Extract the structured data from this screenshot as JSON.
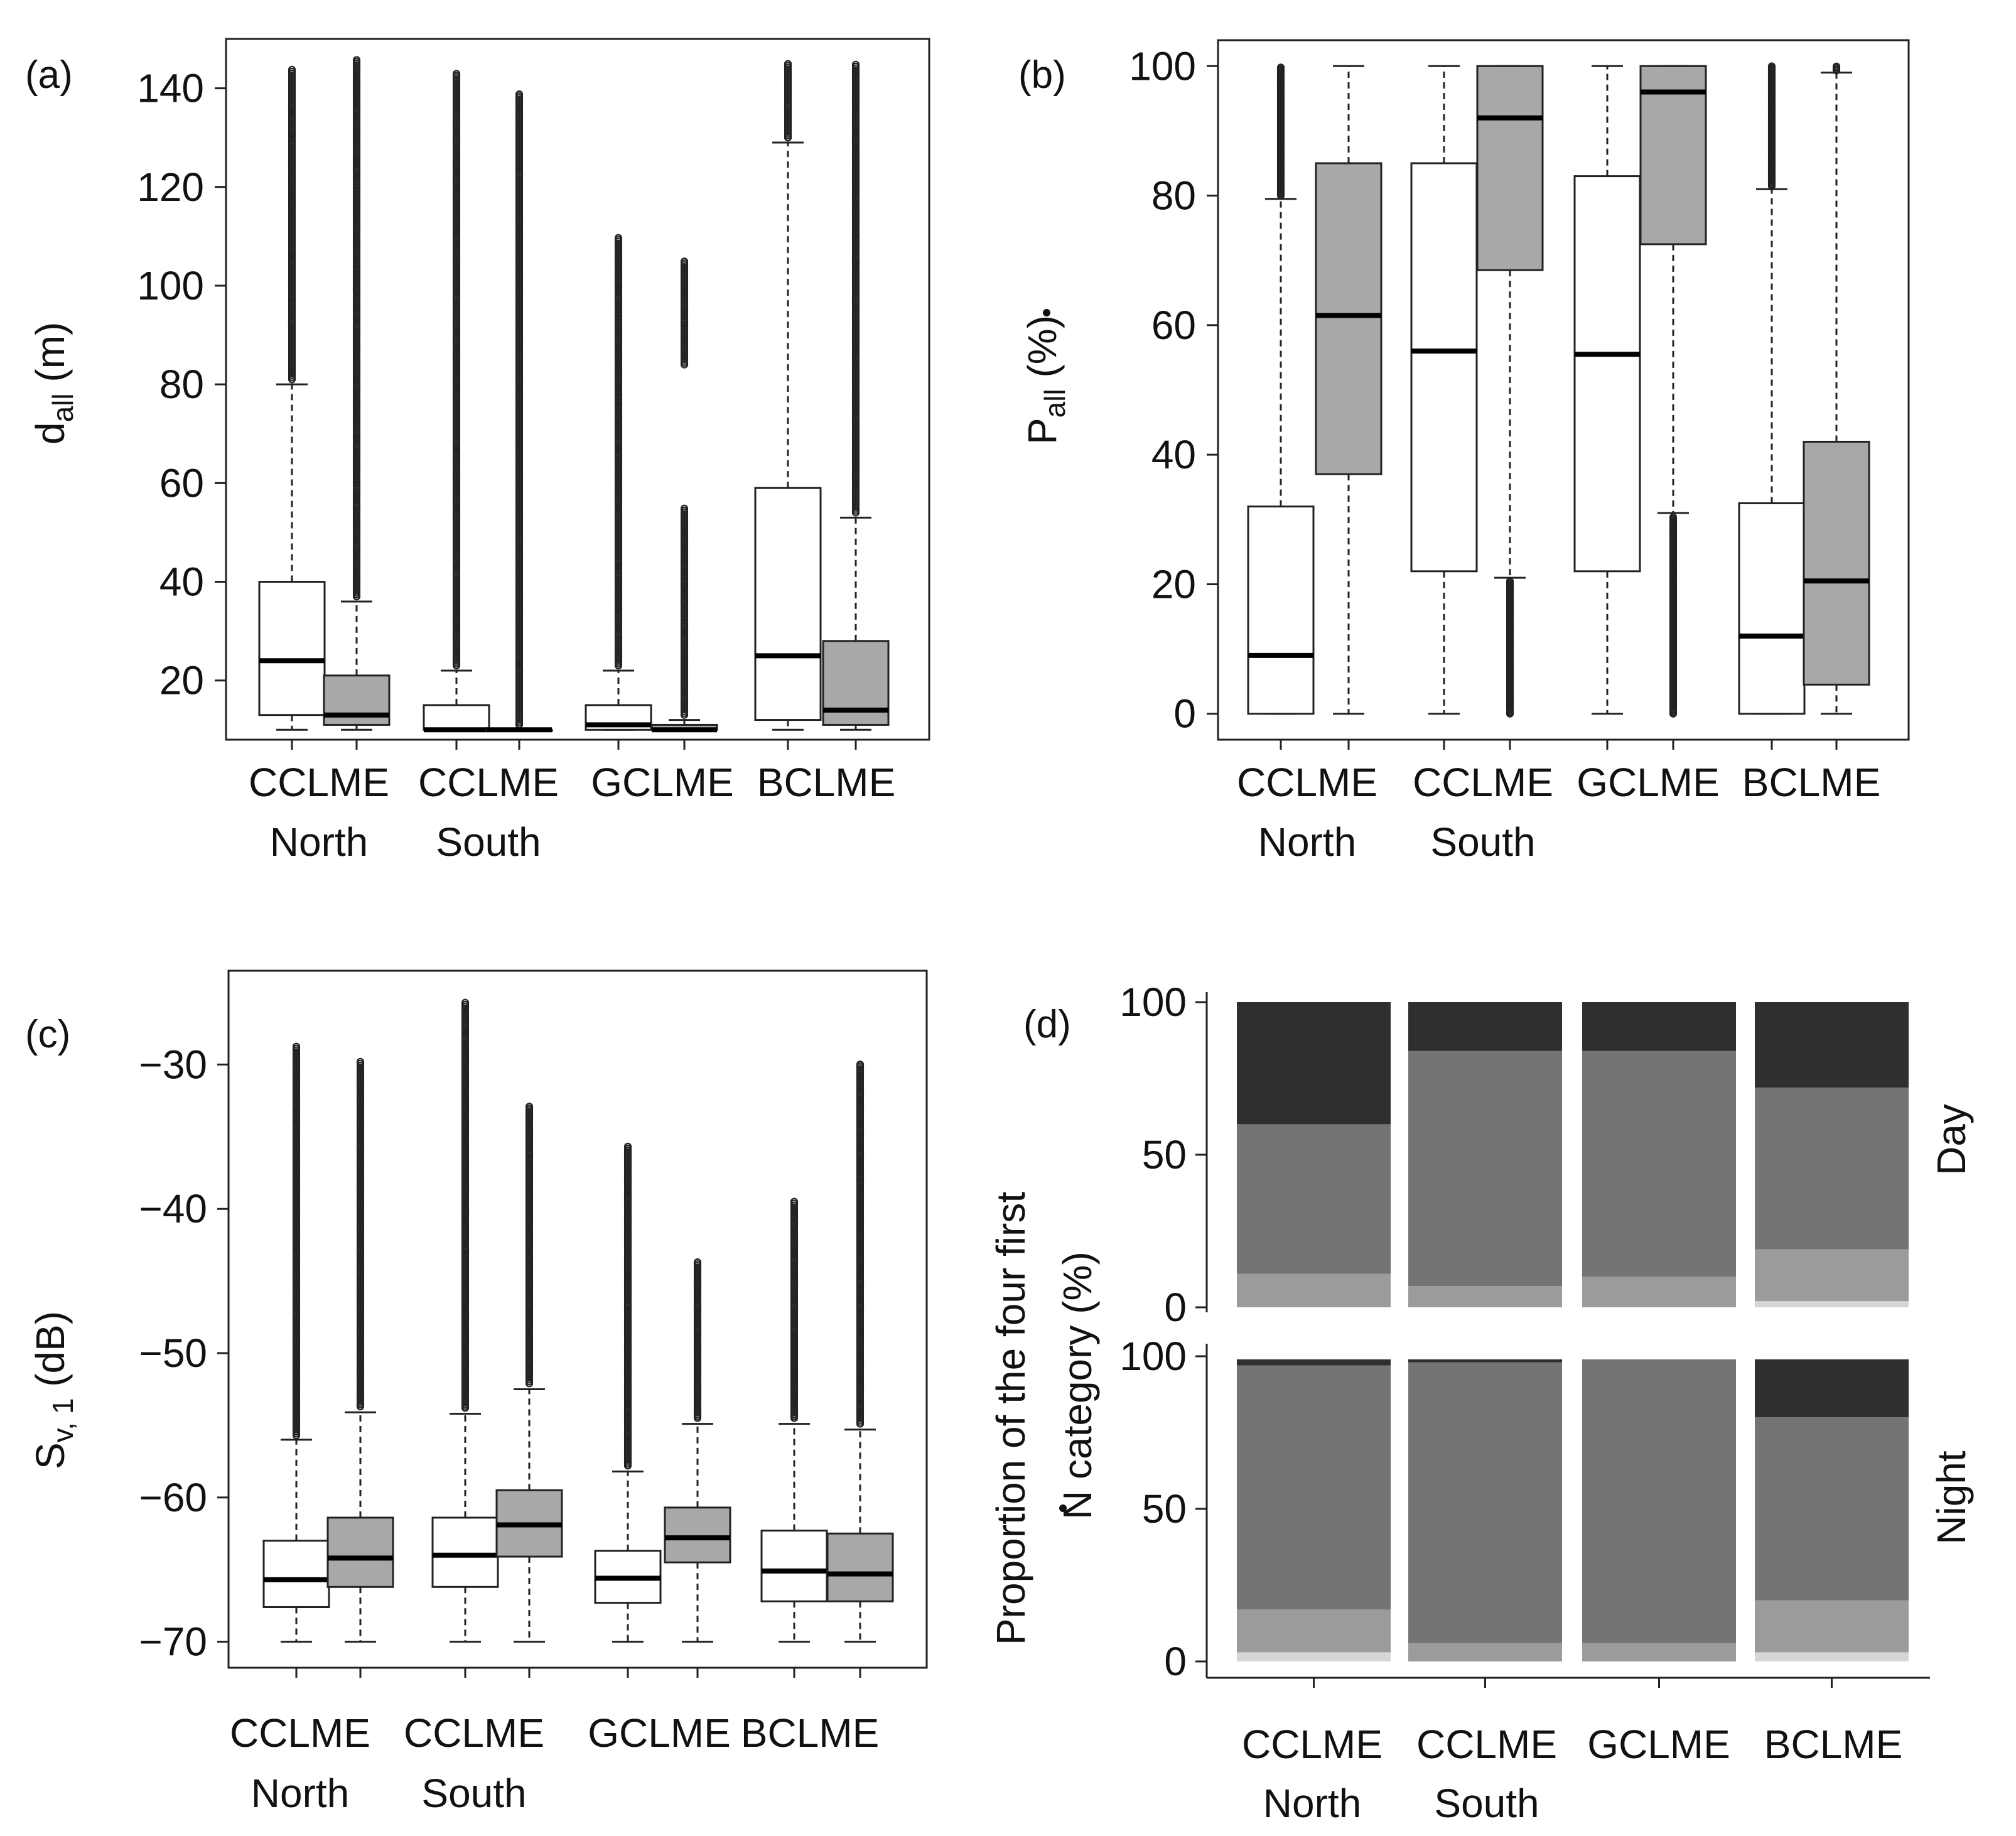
{
  "chart_data": [
    {
      "panel": "(a)",
      "type": "boxplot",
      "ylabel_main": "d",
      "ylabel_sub": "all",
      "ylabel_unit": " (m)",
      "yticks": [
        20,
        40,
        60,
        80,
        100,
        120,
        140
      ],
      "ylim": [
        8,
        150
      ],
      "groups": [
        {
          "line1": "CCLME",
          "line2": "North"
        },
        {
          "line1": "CCLME",
          "line2": "South"
        },
        {
          "line1": "GCLME",
          "line2": ""
        },
        {
          "line1": "BCLME",
          "line2": ""
        }
      ],
      "series": [
        {
          "name": "white",
          "boxes": [
            {
              "lw": 10,
              "q1": 13,
              "med": 24,
              "q3": 40,
              "uw": 80,
              "omin": 81,
              "omax": 144
            },
            {
              "lw": 10,
              "q1": 10,
              "med": 10,
              "q3": 15,
              "uw": 22,
              "omin": 23,
              "omax": 143
            },
            {
              "lw": 10,
              "q1": 10,
              "med": 11,
              "q3": 15,
              "uw": 22,
              "omin": 23,
              "omax": 110
            },
            {
              "lw": 10,
              "q1": 12,
              "med": 25,
              "q3": 59,
              "uw": 129,
              "omin": 130,
              "omax": 145
            }
          ]
        },
        {
          "name": "gray",
          "boxes": [
            {
              "lw": 10,
              "q1": 11,
              "med": 13,
              "q3": 21,
              "uw": 36,
              "omin": 37,
              "omax": 146
            },
            {
              "lw": 10,
              "q1": 10,
              "med": 10,
              "q3": 10,
              "uw": 10,
              "omin": 11,
              "omax": 139
            },
            {
              "lw": 10,
              "q1": 10,
              "med": 10,
              "q3": 11,
              "uw": 12,
              "omin": 13,
              "omax": 105,
              "gap": [
                55,
                84
              ]
            },
            {
              "lw": 10,
              "q1": 11,
              "med": 14,
              "q3": 28,
              "uw": 53,
              "omin": 54,
              "omax": 145
            }
          ]
        }
      ]
    },
    {
      "panel": "(b)",
      "type": "boxplot",
      "ylabel_main": "P",
      "ylabel_sub": "all",
      "ylabel_unit": " (%)",
      "yticks": [
        0,
        20,
        40,
        60,
        80,
        100
      ],
      "ylim": [
        -4,
        104
      ],
      "groups": [
        {
          "line1": "CCLME",
          "line2": "North"
        },
        {
          "line1": "CCLME",
          "line2": "South"
        },
        {
          "line1": "GCLME",
          "line2": ""
        },
        {
          "line1": "BCLME",
          "line2": ""
        }
      ],
      "series": [
        {
          "name": "white",
          "boxes": [
            {
              "lw": 0,
              "q1": 0,
              "med": 9,
              "q3": 32,
              "uw": 79.5,
              "omin": 80,
              "omax": 100
            },
            {
              "lw": 0,
              "q1": 22,
              "med": 56,
              "q3": 85,
              "uw": 100
            },
            {
              "lw": 0,
              "q1": 22,
              "med": 55.5,
              "q3": 83,
              "uw": 100
            },
            {
              "lw": 0,
              "q1": 0,
              "med": 12,
              "q3": 32.5,
              "uw": 81,
              "omin": 81.5,
              "omax": 100
            }
          ]
        },
        {
          "name": "gray",
          "boxes": [
            {
              "lw": 0,
              "q1": 37,
              "med": 61.5,
              "q3": 85,
              "uw": 100
            },
            {
              "lw": 21,
              "q1": 68.5,
              "med": 92,
              "q3": 100,
              "uw": 100,
              "omin": 0,
              "omax": 20.5
            },
            {
              "lw": 31,
              "q1": 72.5,
              "med": 96,
              "q3": 100,
              "uw": 100,
              "omin": 0,
              "omax": 30.5
            },
            {
              "lw": 0,
              "q1": 4.5,
              "med": 20.5,
              "q3": 42,
              "uw": 99,
              "omin": 99.3,
              "omax": 100
            }
          ]
        }
      ]
    },
    {
      "panel": "(c)",
      "type": "boxplot",
      "ylabel_main": "S",
      "ylabel_sub": "v, 1",
      "ylabel_unit": " (dB)",
      "yticks": [
        -70,
        -60,
        -50,
        -40,
        -30
      ],
      "ylim": [
        -71.8,
        -23.5
      ],
      "groups": [
        {
          "line1": "CCLME",
          "line2": "North"
        },
        {
          "line1": "CCLME",
          "line2": "South"
        },
        {
          "line1": "GCLME",
          "line2": ""
        },
        {
          "line1": "BCLME",
          "line2": ""
        }
      ],
      "series": [
        {
          "name": "white",
          "boxes": [
            {
              "lw": -70,
              "q1": -67.6,
              "med": -65.7,
              "q3": -63,
              "uw": -56,
              "omin": -55.7,
              "omax": -28.7
            },
            {
              "lw": -70,
              "q1": -66.2,
              "med": -64,
              "q3": -61.4,
              "uw": -54.2,
              "omin": -53.8,
              "omax": -25.6
            },
            {
              "lw": -70,
              "q1": -67.3,
              "med": -65.6,
              "q3": -63.7,
              "uw": -58.2,
              "omin": -57.8,
              "omax": -35.6
            },
            {
              "lw": -70,
              "q1": -67.2,
              "med": -65.1,
              "q3": -62.3,
              "uw": -54.9,
              "omin": -54.5,
              "omax": -39.4
            }
          ]
        },
        {
          "name": "gray",
          "boxes": [
            {
              "lw": -70,
              "q1": -66.2,
              "med": -64.2,
              "q3": -61.4,
              "uw": -54.1,
              "omin": -53.7,
              "omax": -29.8
            },
            {
              "lw": -70,
              "q1": -64.1,
              "med": -61.9,
              "q3": -59.5,
              "uw": -52.5,
              "omin": -52.1,
              "omax": -32.9
            },
            {
              "lw": -70,
              "q1": -64.5,
              "med": -62.8,
              "q3": -60.7,
              "uw": -54.9,
              "omin": -54.5,
              "omax": -43.6
            },
            {
              "lw": -70,
              "q1": -67.2,
              "med": -65.3,
              "q3": -62.5,
              "uw": -55.3,
              "omin": -54.9,
              "omax": -29.9
            }
          ]
        }
      ]
    },
    {
      "panel": "(d)",
      "type": "stacked-bar",
      "ylabel_line1": "Proportion of the four first",
      "ylabel_line2_main": "N",
      "ylabel_line2_rest": " category (%)",
      "yticks": [
        0,
        50,
        100
      ],
      "categories": [
        {
          "line1": "CCLME",
          "line2": "North"
        },
        {
          "line1": "CCLME",
          "line2": "South"
        },
        {
          "line1": "GCLME",
          "line2": ""
        },
        {
          "line1": "BCLME",
          "line2": ""
        }
      ],
      "segment_colors": [
        "#d6d6d6",
        "#9b9b9b",
        "#747474",
        "#2f2f2f"
      ],
      "facets": [
        {
          "label": "Day",
          "stacks": [
            [
              0,
              11,
              60,
              100
            ],
            [
              0,
              7,
              84,
              100
            ],
            [
              0,
              10,
              84,
              100
            ],
            [
              2,
              19,
              72,
              100
            ]
          ]
        },
        {
          "label": "Night",
          "stacks": [
            [
              3,
              17,
              97,
              99
            ],
            [
              0,
              6,
              98,
              99
            ],
            [
              0,
              6,
              99,
              99
            ],
            [
              3,
              20,
              80,
              99
            ]
          ]
        }
      ]
    }
  ]
}
